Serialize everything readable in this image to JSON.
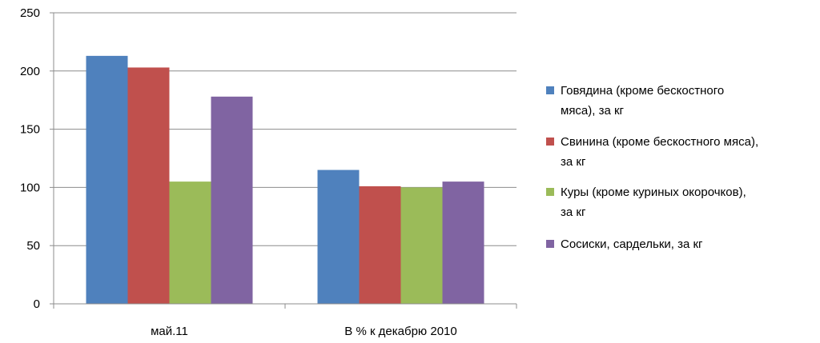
{
  "chart_data": {
    "type": "bar",
    "categories": [
      "май.11",
      "В % к декабрю 2010"
    ],
    "series": [
      {
        "name": "Говядина (кроме бескостного мяса), за кг",
        "legend_lines": [
          "Говядина (кроме бескостного",
          "мяса), за кг"
        ],
        "values": [
          213,
          115
        ],
        "color": "#4F81BD"
      },
      {
        "name": "Свинина (кроме бескостного мяса), за кг",
        "legend_lines": [
          "Свинина (кроме бескостного мяса),",
          "за кг"
        ],
        "values": [
          203,
          101
        ],
        "color": "#C0504D"
      },
      {
        "name": "Куры (кроме куриных окорочков), за кг",
        "legend_lines": [
          "Куры (кроме куриных окорочков),",
          "за кг"
        ],
        "values": [
          105,
          100
        ],
        "color": "#9BBB59"
      },
      {
        "name": "Сосиски, сардельки, за кг",
        "legend_lines": [
          "Сосиски, сардельки, за кг"
        ],
        "values": [
          178,
          105
        ],
        "color": "#8064A2"
      }
    ],
    "y_ticks": [
      "0",
      "50",
      "100",
      "150",
      "200",
      "250"
    ],
    "ylim": [
      0,
      250
    ],
    "grid": true,
    "legend_position": "right",
    "title": "",
    "xlabel": "",
    "ylabel": ""
  }
}
